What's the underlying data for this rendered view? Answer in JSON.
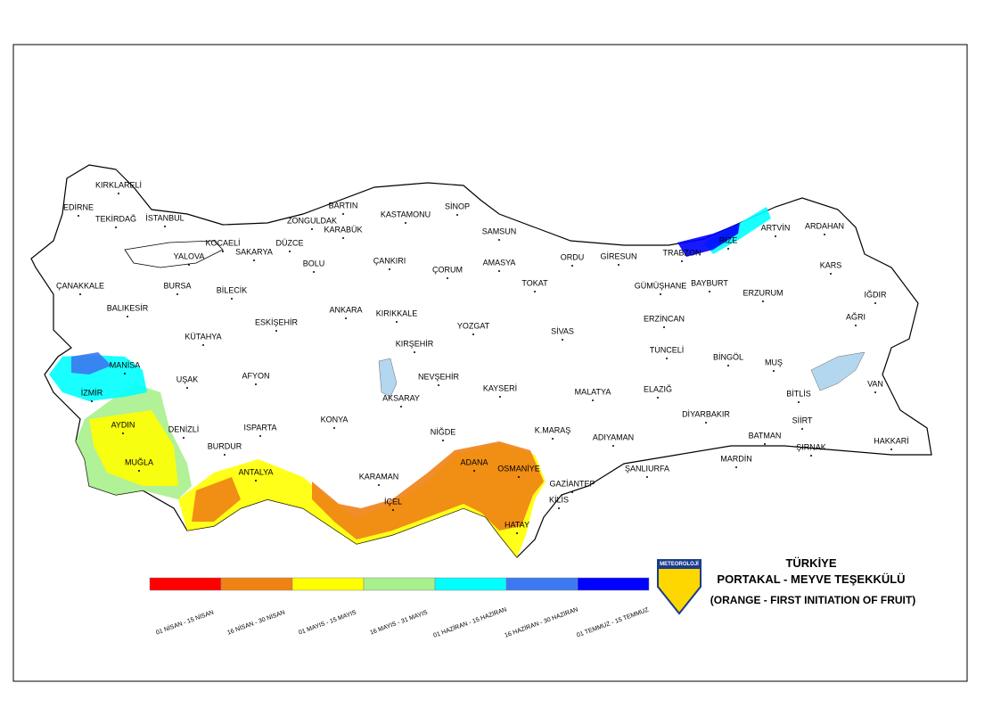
{
  "map": {
    "title": "TÜRKİYE",
    "subtitle": "PORTAKAL - MEYVE TEŞEKKÜLÜ",
    "note": "(ORANGE - FIRST INITIATION OF FRUIT)",
    "logo": "METEOROLOJİ",
    "legend": [
      {
        "label": "01 NİSAN - 15 NİSAN",
        "color": "#ff0000"
      },
      {
        "label": "16 NİSAN - 30 NİSAN",
        "color": "#f08214"
      },
      {
        "label": "01 MAYIS - 15 MAYIS",
        "color": "#ffff00"
      },
      {
        "label": "16 MAYIS - 31 MAYIS",
        "color": "#a8f08c"
      },
      {
        "label": "01 HAZİRAN - 15 HAZİRAN",
        "color": "#00ffff"
      },
      {
        "label": "16 HAZİRAN - 30 HAZİRAN",
        "color": "#3c78f0"
      },
      {
        "label": "01 TEMMUZ - 15 TEMMUZ",
        "color": "#0000ff"
      }
    ],
    "provinces": [
      "KIRKLARELİ",
      "EDİRNE",
      "TEKİRDAĞ",
      "İSTANBUL",
      "KOCAELİ",
      "YALOVA",
      "SAKARYA",
      "DÜZCE",
      "ZONGULDAK",
      "BARTIN",
      "KARABÜK",
      "KASTAMONU",
      "SİNOP",
      "SAMSUN",
      "BOLU",
      "ÇANKIRI",
      "ÇORUM",
      "AMASYA",
      "ORDU",
      "GİRESUN",
      "TRABZON",
      "RİZE",
      "ARTVİN",
      "ARDAHAN",
      "KARS",
      "IĞDIR",
      "AĞRI",
      "ERZURUM",
      "BAYBURT",
      "GÜMÜŞHANE",
      "TOKAT",
      "ÇANAKKALE",
      "BURSA",
      "BİLECİK",
      "BALIKESİR",
      "ESKİŞEHİR",
      "ANKARA",
      "KIRIKKALE",
      "YOZGAT",
      "SİVAS",
      "ERZİNCAN",
      "KÜTAHYA",
      "KIRŞEHİR",
      "TUNCELİ",
      "BİNGÖL",
      "MUŞ",
      "VAN",
      "MANİSA",
      "UŞAK",
      "AFYON",
      "NEVŞEHİR",
      "KAYSERİ",
      "MALATYA",
      "ELAZIĞ",
      "BİTLİS",
      "İZMİR",
      "AKSARAY",
      "DİYARBAKIR",
      "SİİRT",
      "AYDIN",
      "DENİZLİ",
      "KONYA",
      "ISPARTA",
      "NİĞDE",
      "K.MARAŞ",
      "BATMAN",
      "ŞIRNAK",
      "HAKKARİ",
      "ADIYAMAN",
      "BURDUR",
      "ŞANLIURFA",
      "MARDİN",
      "MUĞLA",
      "ADANA",
      "OSMANİYE",
      "ANTALYA",
      "KARAMAN",
      "GAZİANTEP",
      "KİLİS",
      "İÇEL",
      "HATAY"
    ]
  }
}
